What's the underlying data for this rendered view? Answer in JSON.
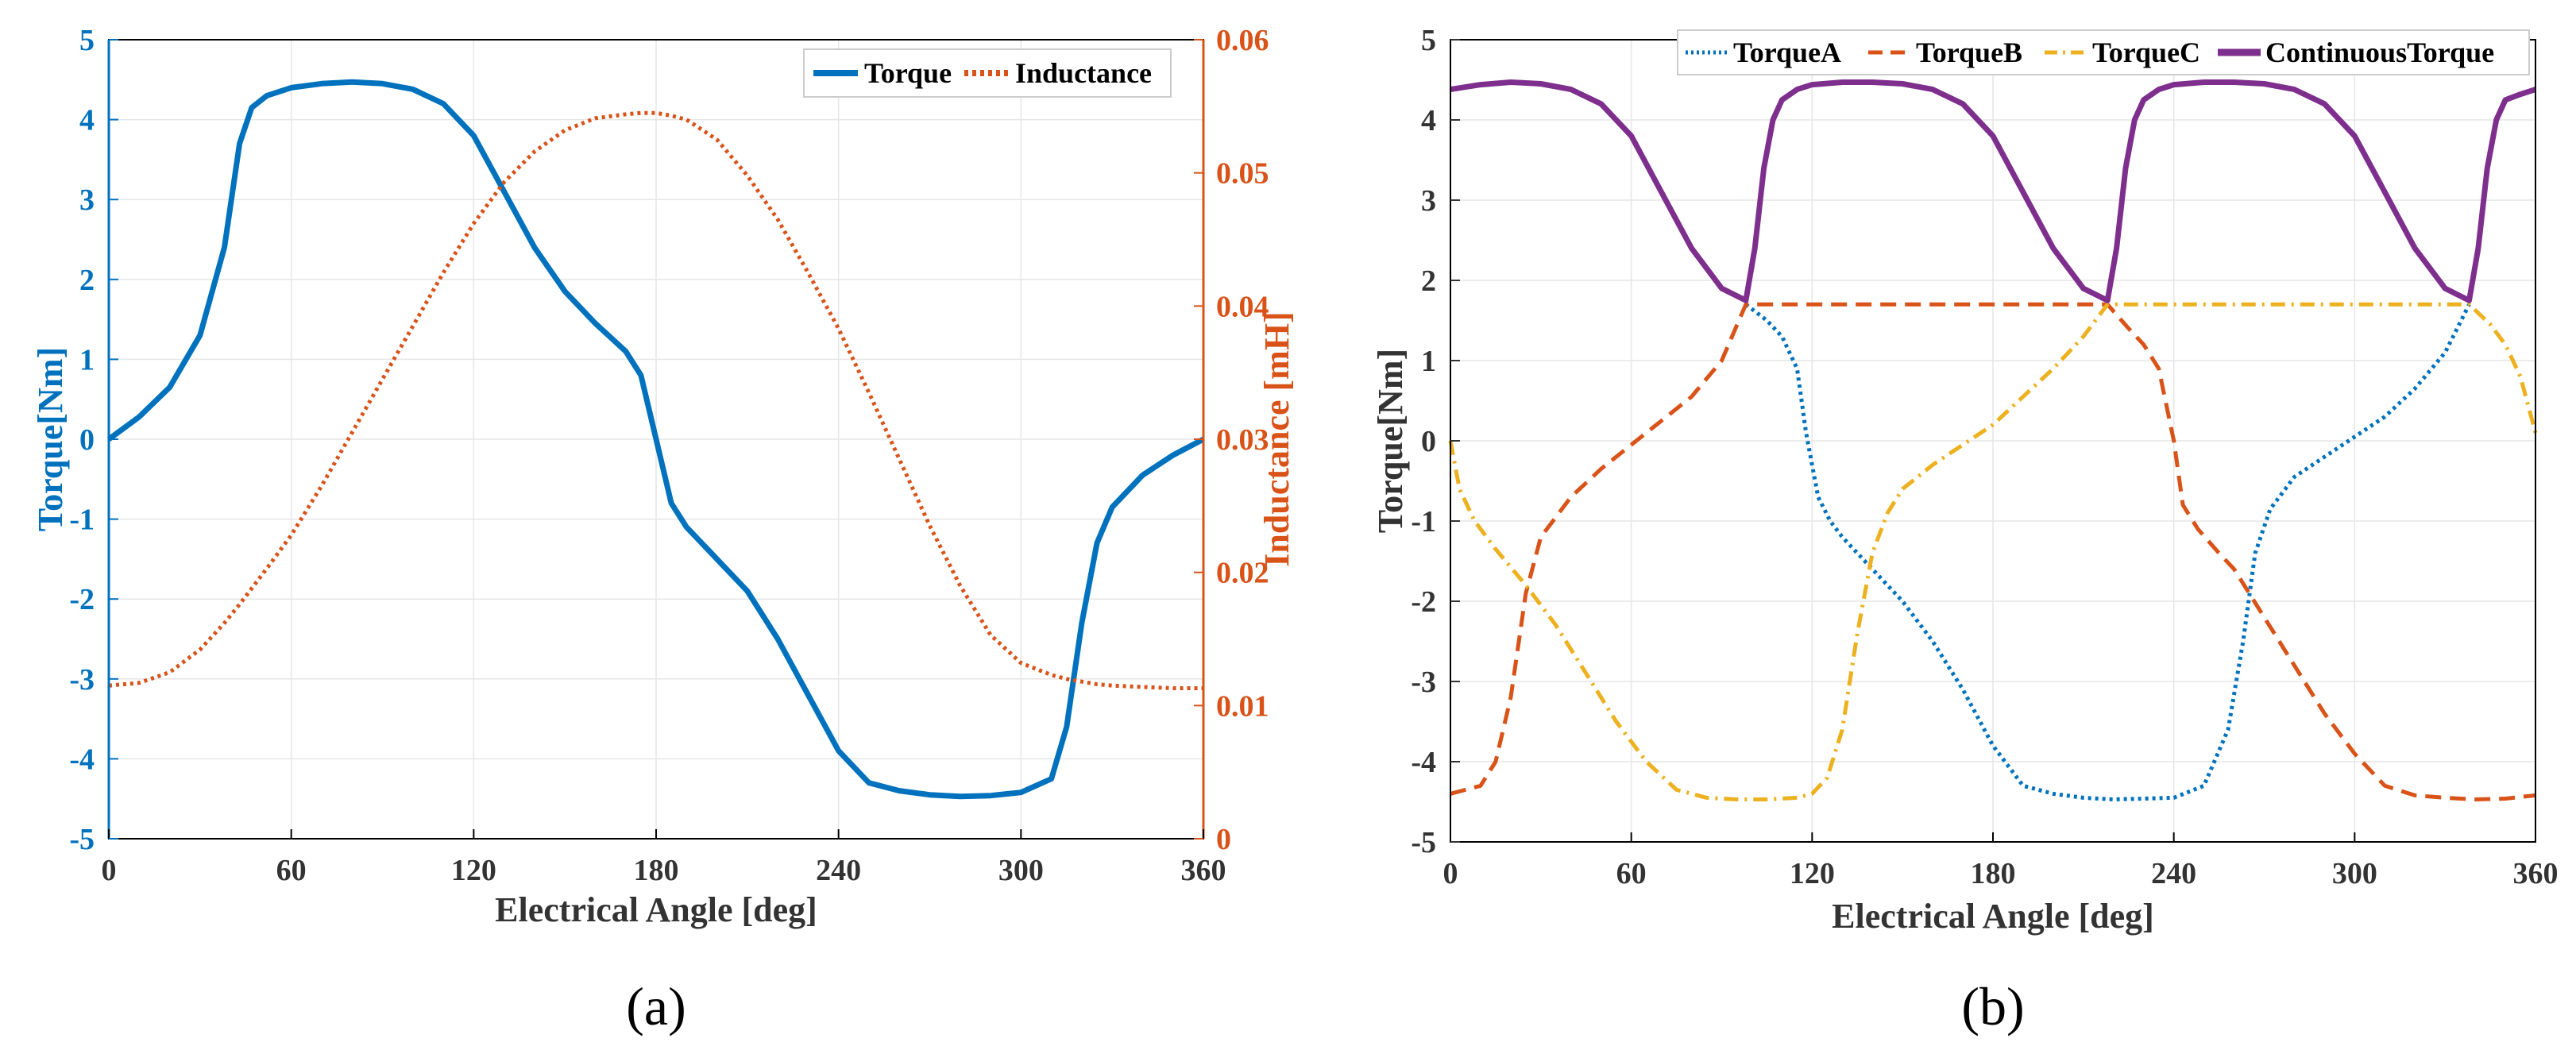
{
  "colors": {
    "blue": "#0072BD",
    "orange": "#D95319",
    "yellow": "#EDB120",
    "purple": "#7E2F8E",
    "grid": "#e6e6e6"
  },
  "chart_data": [
    {
      "type": "line",
      "caption": "(a)",
      "xlabel": "Electrical Angle [deg]",
      "ylabel": "Torque[Nm]",
      "y2label": "Inductance [mH]",
      "xlim": [
        0,
        360
      ],
      "ylim": [
        -5,
        5
      ],
      "y2lim": [
        0,
        0.06
      ],
      "xticks": [
        "0",
        "60",
        "120",
        "180",
        "240",
        "300",
        "360"
      ],
      "yticks": [
        "-5",
        "-4",
        "-3",
        "-2",
        "-1",
        "0",
        "1",
        "2",
        "3",
        "4",
        "5"
      ],
      "y2ticks": [
        "0",
        "0.01",
        "0.02",
        "0.03",
        "0.04",
        "0.05",
        "0.06"
      ],
      "grid": true,
      "legend_position": "top-right",
      "x": [
        0,
        10,
        20,
        30,
        38,
        43,
        47,
        52,
        60,
        70,
        80,
        90,
        100,
        110,
        120,
        130,
        140,
        150,
        160,
        170,
        175,
        180,
        185,
        190,
        200,
        210,
        220,
        230,
        240,
        250,
        260,
        270,
        280,
        290,
        300,
        310,
        315,
        320,
        325,
        330,
        340,
        350,
        360
      ],
      "series": [
        {
          "name": "Torque",
          "axis": "left",
          "style": "solid",
          "values": [
            0,
            0.28,
            0.65,
            1.3,
            2.4,
            3.7,
            4.15,
            4.3,
            4.4,
            4.45,
            4.47,
            4.45,
            4.38,
            4.2,
            3.8,
            3.1,
            2.4,
            1.85,
            1.45,
            1.1,
            0.8,
            0,
            -0.8,
            -1.1,
            -1.5,
            -1.9,
            -2.5,
            -3.2,
            -3.9,
            -4.3,
            -4.4,
            -4.45,
            -4.47,
            -4.46,
            -4.42,
            -4.25,
            -3.6,
            -2.3,
            -1.3,
            -0.85,
            -0.45,
            -0.2,
            0
          ]
        },
        {
          "name": "Inductance",
          "axis": "right",
          "style": "dotted",
          "values": [
            0.0115,
            0.0117,
            0.0125,
            0.0142,
            0.0162,
            0.0176,
            0.0188,
            0.0203,
            0.0228,
            0.0265,
            0.0305,
            0.0345,
            0.0385,
            0.0425,
            0.0462,
            0.0493,
            0.0516,
            0.0532,
            0.0541,
            0.0544,
            0.0545,
            0.0545,
            0.0543,
            0.054,
            0.0525,
            0.0498,
            0.0465,
            0.0425,
            0.0383,
            0.0335,
            0.0285,
            0.0235,
            0.019,
            0.0153,
            0.0132,
            0.0123,
            0.012,
            0.0118,
            0.0116,
            0.0115,
            0.0114,
            0.0113,
            0.0113
          ]
        }
      ]
    },
    {
      "type": "line",
      "caption": "(b)",
      "xlabel": "Electrical Angle [deg]",
      "ylabel": "Torque[Nm]",
      "xlim": [
        0,
        360
      ],
      "ylim": [
        -5,
        5
      ],
      "xticks": [
        "0",
        "60",
        "120",
        "180",
        "240",
        "300",
        "360"
      ],
      "yticks": [
        "-5",
        "-4",
        "-3",
        "-2",
        "-1",
        "0",
        "1",
        "2",
        "3",
        "4",
        "5"
      ],
      "grid": true,
      "legend_position": "top",
      "series": [
        {
          "name": "TorqueA",
          "style": "dotted",
          "x": [
            98,
            105,
            110,
            115,
            118,
            122,
            126,
            130,
            140,
            150,
            160,
            170,
            180,
            190,
            200,
            210,
            220,
            230,
            240,
            250,
            258,
            263,
            267,
            272,
            280,
            290,
            300,
            310,
            320,
            330,
            338
          ],
          "values": [
            1.7,
            1.5,
            1.3,
            0.9,
            0.1,
            -0.7,
            -1.0,
            -1.2,
            -1.6,
            -2.0,
            -2.5,
            -3.1,
            -3.8,
            -4.3,
            -4.4,
            -4.45,
            -4.47,
            -4.46,
            -4.45,
            -4.3,
            -3.6,
            -2.5,
            -1.4,
            -0.85,
            -0.45,
            -0.2,
            0.05,
            0.3,
            0.65,
            1.1,
            1.7
          ]
        },
        {
          "name": "TorqueB",
          "style": "dashed",
          "x": [
            0,
            10,
            15,
            20,
            25,
            30,
            40,
            50,
            60,
            70,
            80,
            90,
            98,
            218,
            225,
            230,
            235,
            240,
            243,
            248,
            255,
            260,
            270,
            280,
            290,
            300,
            310,
            320,
            330,
            340,
            350,
            360
          ],
          "values": [
            -4.4,
            -4.3,
            -4.0,
            -3.2,
            -1.9,
            -1.2,
            -0.7,
            -0.35,
            -0.05,
            0.25,
            0.55,
            1.0,
            1.7,
            1.7,
            1.4,
            1.2,
            0.9,
            0.0,
            -0.8,
            -1.1,
            -1.4,
            -1.6,
            -2.2,
            -2.8,
            -3.4,
            -3.9,
            -4.3,
            -4.42,
            -4.45,
            -4.47,
            -4.46,
            -4.42
          ]
        },
        {
          "name": "TorqueC",
          "style": "dashdot",
          "x": [
            0,
            3,
            8,
            15,
            25,
            35,
            45,
            55,
            65,
            75,
            85,
            95,
            105,
            115,
            120,
            125,
            130,
            135,
            140,
            145,
            150,
            160,
            170,
            180,
            190,
            200,
            210,
            218,
            338,
            345,
            350,
            355,
            360
          ],
          "values": [
            0,
            -0.6,
            -1.0,
            -1.35,
            -1.8,
            -2.3,
            -2.9,
            -3.5,
            -4.0,
            -4.35,
            -4.45,
            -4.47,
            -4.47,
            -4.45,
            -4.4,
            -4.2,
            -3.6,
            -2.4,
            -1.4,
            -0.9,
            -0.6,
            -0.3,
            -0.05,
            0.2,
            0.55,
            0.9,
            1.3,
            1.7,
            1.7,
            1.45,
            1.2,
            0.8,
            0.1
          ]
        },
        {
          "name": "ContinuousTorque",
          "style": "solid",
          "x": [
            0,
            10,
            20,
            30,
            40,
            50,
            60,
            70,
            80,
            90,
            98,
            101,
            104,
            107,
            110,
            115,
            120,
            130,
            140,
            150,
            160,
            170,
            180,
            190,
            200,
            210,
            218,
            221,
            224,
            227,
            230,
            235,
            240,
            250,
            260,
            270,
            280,
            290,
            300,
            310,
            320,
            330,
            338,
            341,
            344,
            347,
            350,
            355,
            360
          ],
          "values": [
            4.38,
            4.44,
            4.47,
            4.45,
            4.38,
            4.2,
            3.8,
            3.1,
            2.4,
            1.9,
            1.75,
            2.4,
            3.4,
            4.0,
            4.25,
            4.38,
            4.44,
            4.47,
            4.47,
            4.45,
            4.38,
            4.2,
            3.8,
            3.1,
            2.4,
            1.9,
            1.75,
            2.4,
            3.4,
            4.0,
            4.25,
            4.38,
            4.44,
            4.47,
            4.47,
            4.45,
            4.38,
            4.2,
            3.8,
            3.1,
            2.4,
            1.9,
            1.75,
            2.4,
            3.4,
            4.0,
            4.25,
            4.32,
            4.38
          ]
        }
      ]
    }
  ]
}
